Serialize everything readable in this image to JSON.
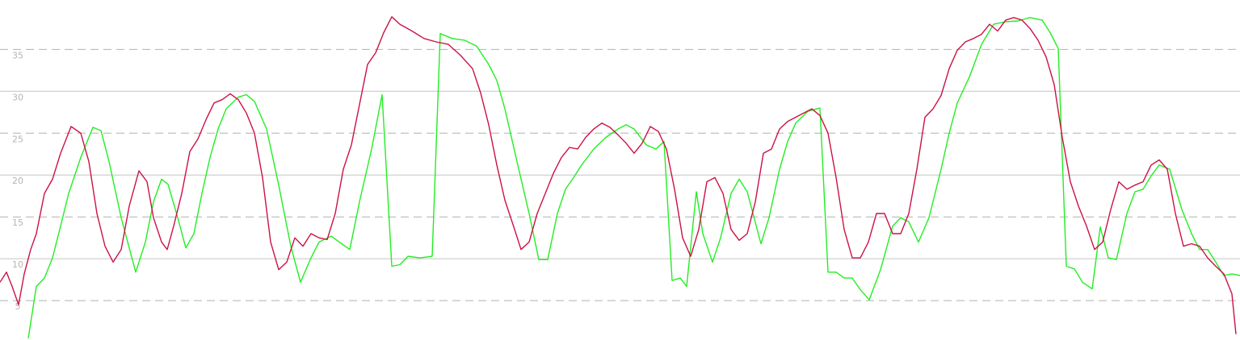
{
  "chart_data": {
    "type": "line",
    "xlim": [
      0,
      1535
    ],
    "ylim": [
      0.3,
      40.9
    ],
    "yticks": [
      5,
      10,
      15,
      20,
      25,
      30,
      35
    ],
    "grid": true,
    "series": [
      {
        "color": "#22ee22",
        "x": [
          35,
          45,
          55,
          65,
          75,
          85,
          100,
          115,
          125,
          135,
          150,
          168,
          180,
          190,
          200,
          208,
          220,
          230,
          240,
          250,
          260,
          270,
          280,
          295,
          305,
          315,
          330,
          345,
          360,
          372,
          385,
          395,
          410,
          420,
          433,
          445,
          460,
          473,
          485,
          495,
          505,
          520,
          535,
          545,
          560,
          575,
          590,
          605,
          615,
          625,
          640,
          655,
          667,
          678,
          690,
          700,
          710,
          720,
          735,
          750,
          765,
          775,
          785,
          800,
          812,
          822,
          832,
          842,
          850,
          862,
          870,
          882,
          892,
          905,
          915,
          925,
          942,
          952,
          965,
          975,
          985,
          1000,
          1015,
          1025,
          1035,
          1045,
          1055,
          1065,
          1076,
          1090,
          1105,
          1115,
          1125,
          1137,
          1150,
          1165,
          1175,
          1185,
          1200,
          1215,
          1230,
          1245,
          1260,
          1275,
          1290,
          1300,
          1310,
          1320,
          1330,
          1340,
          1352,
          1362,
          1372,
          1382,
          1395,
          1405,
          1415,
          1425,
          1435,
          1448,
          1463,
          1475,
          1485,
          1495,
          1505,
          1515,
          1525,
          1535
        ],
        "values": [
          0.5,
          6.7,
          7.7,
          10.1,
          13.9,
          17.8,
          22.1,
          25.7,
          25.3,
          21.6,
          14.9,
          8.4,
          12.0,
          16.8,
          19.5,
          18.9,
          14.9,
          11.3,
          13.0,
          17.8,
          22.1,
          25.5,
          27.9,
          29.3,
          29.6,
          28.8,
          25.5,
          18.8,
          11.5,
          7.2,
          10.1,
          12.0,
          12.7,
          12.0,
          11.1,
          16.8,
          23.1,
          29.6,
          9.1,
          9.3,
          10.3,
          10.1,
          10.3,
          36.9,
          36.3,
          36.1,
          35.4,
          33.2,
          31.3,
          27.9,
          21.6,
          15.4,
          9.9,
          9.9,
          15.4,
          18.3,
          19.7,
          21.2,
          23.1,
          24.5,
          25.5,
          26.0,
          25.5,
          23.6,
          23.1,
          24.0,
          7.4,
          7.7,
          6.7,
          18.0,
          13.0,
          9.6,
          12.5,
          17.8,
          19.5,
          18.0,
          11.8,
          14.9,
          20.7,
          24.0,
          26.2,
          27.6,
          28.0,
          8.4,
          8.4,
          7.7,
          7.7,
          6.3,
          5.1,
          8.7,
          13.9,
          14.9,
          14.4,
          12.0,
          14.9,
          20.7,
          25.0,
          28.6,
          31.7,
          35.6,
          38.0,
          38.3,
          38.4,
          38.8,
          38.5,
          37.0,
          35.1,
          9.1,
          8.8,
          7.2,
          6.4,
          13.8,
          10.1,
          9.9,
          15.4,
          18.0,
          18.3,
          19.9,
          21.2,
          20.7,
          15.9,
          13.0,
          11.1,
          11.1,
          9.6,
          8.0,
          8.2,
          8.0
        ]
      },
      {
        "color": "#cc1144",
        "x": [
          0,
          8,
          15,
          23,
          30,
          38,
          45,
          55,
          65,
          75,
          88,
          100,
          110,
          120,
          130,
          140,
          150,
          160,
          172,
          182,
          190,
          200,
          207,
          215,
          225,
          235,
          245,
          255,
          265,
          275,
          285,
          295,
          305,
          315,
          325,
          335,
          345,
          355,
          365,
          375,
          385,
          395,
          405,
          415,
          425,
          435,
          445,
          455,
          465,
          475,
          485,
          495,
          510,
          525,
          540,
          555,
          570,
          585,
          595,
          605,
          615,
          625,
          635,
          645,
          655,
          665,
          675,
          685,
          695,
          705,
          715,
          725,
          735,
          745,
          755,
          765,
          775,
          785,
          795,
          805,
          815,
          825,
          835,
          845,
          855,
          865,
          875,
          885,
          895,
          905,
          915,
          925,
          935,
          945,
          955,
          965,
          975,
          985,
          995,
          1005,
          1015,
          1025,
          1035,
          1045,
          1055,
          1065,
          1075,
          1085,
          1095,
          1105,
          1115,
          1125,
          1135,
          1145,
          1155,
          1165,
          1175,
          1185,
          1195,
          1205,
          1215,
          1225,
          1235,
          1245,
          1255,
          1265,
          1275,
          1285,
          1295,
          1305,
          1315,
          1325,
          1335,
          1345,
          1355,
          1365,
          1375,
          1385,
          1395,
          1405,
          1415,
          1425,
          1435,
          1445,
          1455,
          1465,
          1475,
          1485,
          1495,
          1505,
          1515,
          1525,
          1530
        ],
        "values": [
          7.2,
          8.4,
          6.7,
          4.5,
          8.2,
          11.1,
          13.0,
          17.8,
          19.5,
          22.6,
          25.8,
          25.0,
          21.6,
          15.4,
          11.5,
          9.6,
          11.1,
          16.3,
          20.5,
          19.2,
          14.9,
          12.0,
          11.1,
          13.9,
          17.8,
          22.8,
          24.3,
          26.6,
          28.6,
          29.0,
          29.7,
          29.0,
          27.4,
          25.0,
          19.7,
          12.0,
          8.7,
          9.6,
          12.5,
          11.5,
          13.0,
          12.5,
          12.3,
          15.4,
          20.7,
          23.6,
          28.4,
          33.2,
          34.6,
          37.0,
          38.9,
          38.0,
          37.2,
          36.3,
          35.9,
          35.6,
          34.3,
          32.7,
          29.8,
          26.0,
          21.2,
          17.0,
          14.1,
          11.1,
          12.0,
          15.4,
          17.8,
          20.2,
          22.1,
          23.3,
          23.1,
          24.5,
          25.5,
          26.2,
          25.7,
          24.8,
          23.8,
          22.6,
          23.8,
          25.8,
          25.2,
          23.1,
          18.3,
          12.5,
          10.3,
          13.5,
          19.2,
          19.7,
          17.8,
          13.5,
          12.2,
          13.0,
          16.8,
          22.6,
          23.1,
          25.5,
          26.4,
          26.9,
          27.4,
          27.9,
          27.1,
          25.0,
          19.7,
          13.5,
          10.1,
          10.1,
          12.0,
          15.4,
          15.4,
          13.0,
          13.0,
          15.4,
          20.7,
          26.9,
          27.9,
          29.5,
          32.7,
          34.9,
          35.9,
          36.3,
          36.8,
          38.0,
          37.2,
          38.5,
          38.8,
          38.5,
          37.5,
          36.1,
          34.1,
          30.8,
          24.5,
          19.2,
          16.3,
          13.9,
          11.1,
          12.0,
          15.9,
          19.2,
          18.3,
          18.8,
          19.2,
          21.2,
          21.8,
          20.7,
          15.4,
          11.5,
          11.8,
          11.5,
          10.1,
          9.1,
          8.2,
          5.8,
          1.0
        ]
      }
    ]
  }
}
